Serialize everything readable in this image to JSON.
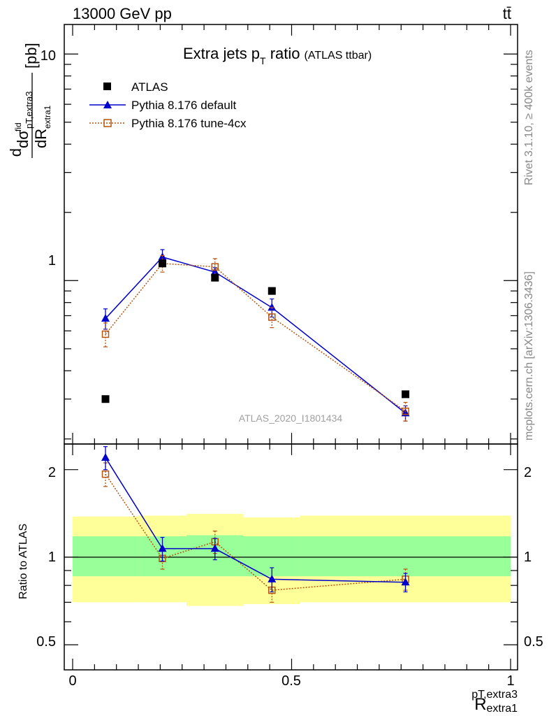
{
  "header": {
    "beam": "13000 GeV pp",
    "process": "tt̄"
  },
  "side_labels": {
    "rivet": "Rivet 3.1.10, ≥ 400k events",
    "mcplots": "mcplots.cern.ch [arXiv:1306.3436]"
  },
  "watermark": "ATLAS_2020_I1801434",
  "chart_data": [
    {
      "type": "scatter",
      "panel": "main",
      "title": "Extra jets p_T ratio",
      "title_main": "Extra jets p",
      "title_sub": "T",
      "title_rest": " ratio",
      "title_note": "(ATLAS ttbar)",
      "ylabel": "dσ^fid/dR_extra1^pT,extra3 [pb]",
      "ylabel_units": "[pb]",
      "yscale": "log",
      "xlim": [
        0,
        1
      ],
      "ylim": [
        0.19,
        13.5
      ],
      "yticks": [
        1,
        10
      ],
      "ytick_labels": [
        "1",
        "10"
      ],
      "legend_position": "top-left",
      "series": [
        {
          "name": "ATLAS",
          "color": "#000000",
          "marker": "square",
          "x": [
            0.075,
            0.205,
            0.325,
            0.455,
            0.76
          ],
          "y": [
            0.3,
            1.19,
            1.03,
            0.9,
            0.315
          ],
          "yerr": [
            0,
            0,
            0,
            0,
            0
          ]
        },
        {
          "name": "Pythia 8.176 default",
          "color": "#0000cc",
          "marker": "triangle",
          "x": [
            0.075,
            0.205,
            0.325,
            0.455,
            0.76
          ],
          "y": [
            0.68,
            1.27,
            1.09,
            0.76,
            0.26
          ],
          "yerr": [
            0.07,
            0.1,
            0.05,
            0.07,
            0.02
          ]
        },
        {
          "name": "Pythia 8.176 tune-4cx",
          "color": "#b5530f",
          "marker": "open-square",
          "x": [
            0.075,
            0.205,
            0.325,
            0.455,
            0.76
          ],
          "y": [
            0.58,
            1.19,
            1.15,
            0.69,
            0.265
          ],
          "yerr": [
            0.07,
            0.1,
            0.1,
            0.07,
            0.025
          ]
        }
      ]
    },
    {
      "type": "line",
      "panel": "ratio",
      "ylabel": "Ratio to ATLAS",
      "xlabel": "R_extra1^pT,extra3",
      "xlabel_main": "R",
      "xlabel_sup": "pT,extra3",
      "xlabel_sub": "extra1",
      "yscale": "log",
      "xlim": [
        0,
        1
      ],
      "ylim": [
        0.41,
        2.45
      ],
      "xticks": [
        0,
        0.5,
        1
      ],
      "xtick_labels": [
        "0",
        "0.5",
        "1"
      ],
      "yticks": [
        0.5,
        1,
        2
      ],
      "ytick_labels": [
        "0.5",
        "1",
        "2"
      ],
      "bands": {
        "bin_edges": [
          0,
          0.15,
          0.26,
          0.39,
          0.52,
          1.0
        ],
        "yellow_lo": [
          0.7,
          0.7,
          0.68,
          0.69,
          0.7
        ],
        "yellow_hi": [
          1.38,
          1.39,
          1.41,
          1.37,
          1.39
        ],
        "green_lo": [
          0.86,
          0.86,
          0.86,
          0.86,
          0.86
        ],
        "green_hi": [
          1.18,
          1.18,
          1.19,
          1.18,
          1.18
        ],
        "yellow_color": "#ffff99",
        "green_color": "#99ff99"
      },
      "series": [
        {
          "name": "Pythia 8.176 default",
          "color": "#0000cc",
          "marker": "triangle",
          "x": [
            0.075,
            0.205,
            0.325,
            0.455,
            0.76
          ],
          "y": [
            2.2,
            1.07,
            1.07,
            0.84,
            0.82
          ],
          "yerr": [
            0.2,
            0.1,
            0.09,
            0.08,
            0.06
          ]
        },
        {
          "name": "Pythia 8.176 tune-4cx",
          "color": "#b5530f",
          "marker": "open-square",
          "x": [
            0.075,
            0.205,
            0.325,
            0.455,
            0.76
          ],
          "y": [
            1.93,
            0.99,
            1.13,
            0.77,
            0.84
          ],
          "yerr": [
            0.18,
            0.08,
            0.1,
            0.07,
            0.07
          ]
        }
      ]
    }
  ]
}
